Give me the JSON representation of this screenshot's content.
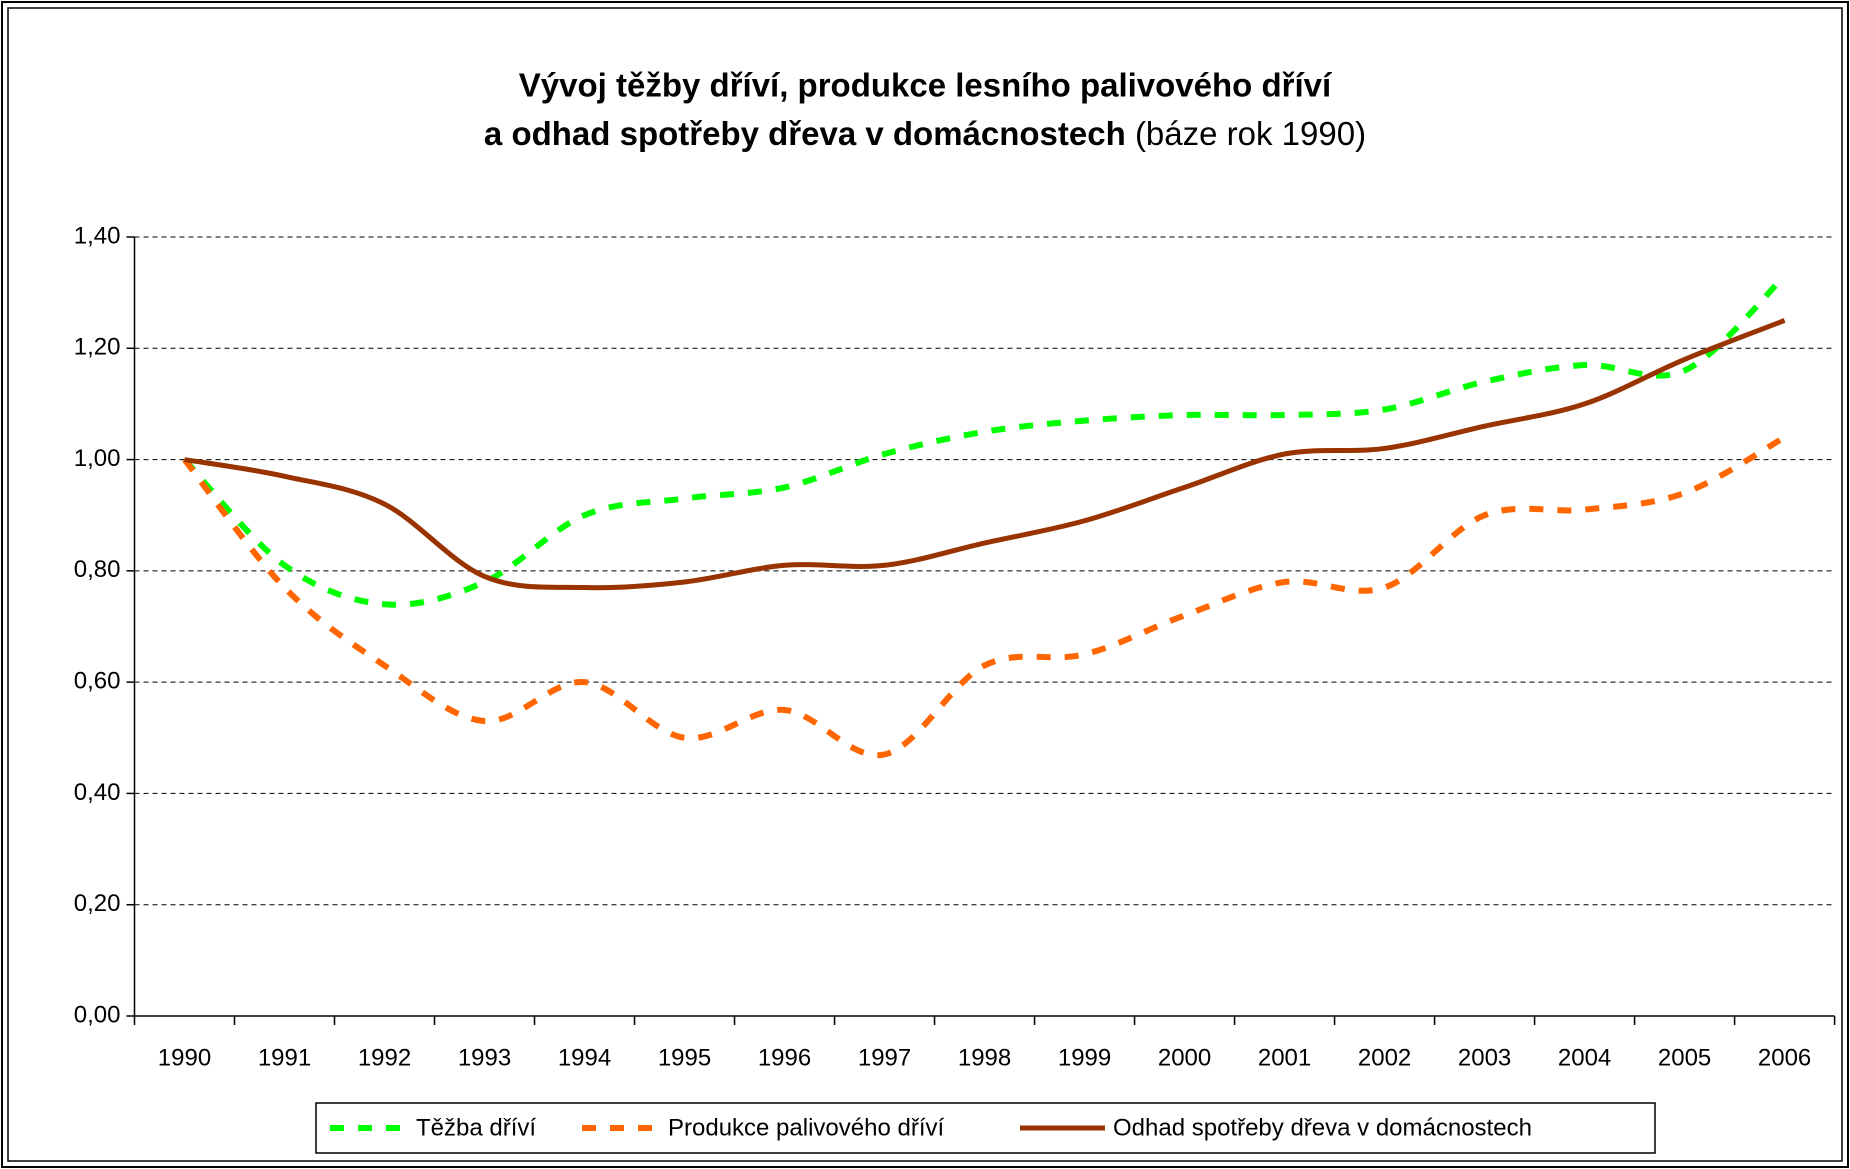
{
  "chart_data": {
    "type": "line",
    "title": [
      "Vývoj těžby dříví, produkce lesního palivového dříví",
      "a odhad spotřeby dřeva v domácnostech"
    ],
    "title_note": "(báze rok 1990)",
    "categories": [
      "1990",
      "1991",
      "1992",
      "1993",
      "1994",
      "1995",
      "1996",
      "1997",
      "1998",
      "1999",
      "2000",
      "2001",
      "2002",
      "2003",
      "2004",
      "2005",
      "2006"
    ],
    "series": [
      {
        "name": "Těžba dříví",
        "color": "#00ff00",
        "style": "dashed",
        "values": [
          1.0,
          0.81,
          0.74,
          0.78,
          0.9,
          0.93,
          0.95,
          1.01,
          1.05,
          1.07,
          1.08,
          1.08,
          1.09,
          1.14,
          1.17,
          1.16,
          1.33
        ]
      },
      {
        "name": "Produkce palivového dříví",
        "color": "#ff6600",
        "style": "dashed",
        "values": [
          1.0,
          0.77,
          0.63,
          0.53,
          0.6,
          0.5,
          0.55,
          0.47,
          0.63,
          0.65,
          0.72,
          0.78,
          0.77,
          0.9,
          0.91,
          0.94,
          1.04
        ]
      },
      {
        "name": "Odhad spotřeby dřeva v domácnostech",
        "color": "#993300",
        "style": "solid",
        "values": [
          1.0,
          0.97,
          0.92,
          0.79,
          0.77,
          0.78,
          0.81,
          0.81,
          0.85,
          0.89,
          0.95,
          1.01,
          1.02,
          1.06,
          1.1,
          1.18,
          1.25
        ]
      }
    ],
    "ylim": [
      0,
      1.4
    ],
    "yticks": [
      {
        "value": 0,
        "label": "0,00"
      },
      {
        "value": 0.2,
        "label": "0,20"
      },
      {
        "value": 0.4,
        "label": "0,40"
      },
      {
        "value": 0.6,
        "label": "0,60"
      },
      {
        "value": 0.8,
        "label": "0,80"
      },
      {
        "value": 1.0,
        "label": "1,00"
      },
      {
        "value": 1.2,
        "label": "1,20"
      },
      {
        "value": 1.4,
        "label": "1,40"
      }
    ],
    "grid": true,
    "legend": "bottom",
    "smooth": true
  }
}
